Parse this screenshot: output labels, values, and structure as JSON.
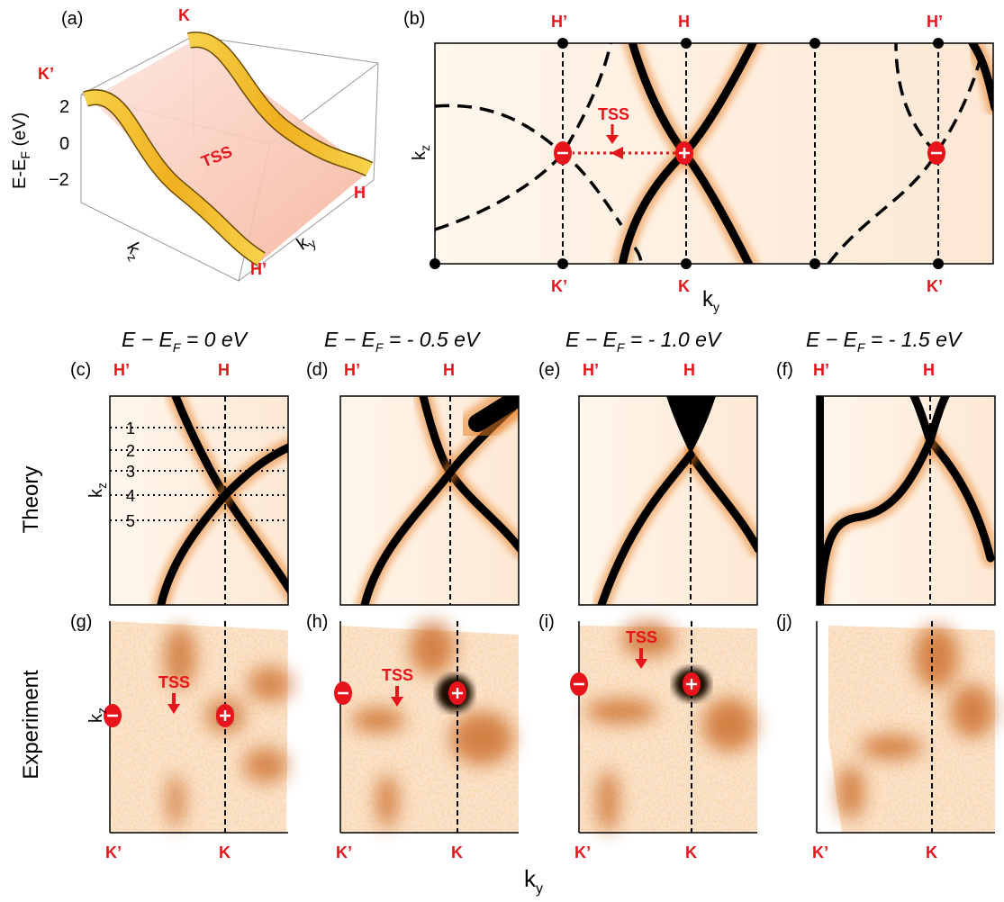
{
  "panel_a": {
    "label": "(a)",
    "K": "K",
    "K_prime": "K’",
    "H": "H",
    "H_prime": "H’",
    "surface_label": "TSS",
    "energy_axis": {
      "main": "E-E",
      "sub": "F",
      "unit": " (eV)"
    },
    "energy_ticks": [
      "2",
      "0",
      "−2"
    ],
    "kz": {
      "main": "k",
      "sub": "z"
    },
    "ky": {
      "main": "k",
      "sub": "y"
    }
  },
  "panel_b": {
    "label": "(b)",
    "top_labels": [
      "H’",
      "H",
      "H’"
    ],
    "bottom_labels": [
      "K’",
      "K",
      "K’"
    ],
    "arrow_label": "TSS",
    "y_axis": {
      "main": "k",
      "sub": "z"
    },
    "x_axis": {
      "main": "k",
      "sub": "y"
    }
  },
  "energy_headers": [
    {
      "lhs": "E − E",
      "sub": "F",
      "rhs": " = 0 eV"
    },
    {
      "lhs": "E − E",
      "sub": "F",
      "rhs": " = - 0.5 eV"
    },
    {
      "lhs": "E − E",
      "sub": "F",
      "rhs": " = - 1.0 eV"
    },
    {
      "lhs": "E − E",
      "sub": "F",
      "rhs": " = - 1.5 eV"
    }
  ],
  "row_labels": [
    "Theory",
    "Experiment"
  ],
  "theory_panels": [
    {
      "label": "(c)",
      "left": "H’",
      "right": "H"
    },
    {
      "label": "(d)",
      "left": "H’",
      "right": "H"
    },
    {
      "label": "(e)",
      "left": "H’",
      "right": "H"
    },
    {
      "label": "(f)",
      "left": "H’",
      "right": "H"
    }
  ],
  "cut_numbers": [
    "1",
    "2",
    "3",
    "4",
    "5"
  ],
  "theory_axis": {
    "main": "k",
    "sub": "z"
  },
  "experiment_panels": [
    {
      "label": "(g)",
      "left": "K’",
      "right": "K",
      "annotation": "TSS"
    },
    {
      "label": "(h)",
      "left": "K’",
      "right": "K",
      "annotation": "TSS"
    },
    {
      "label": "(i)",
      "left": "K’",
      "right": "K",
      "annotation": "TSS"
    },
    {
      "label": "(j)",
      "left": "K’",
      "right": "K"
    }
  ],
  "experiment_axis": {
    "main": "k",
    "sub": "z"
  },
  "bottom_axis": {
    "main": "k",
    "sub": "y"
  }
}
